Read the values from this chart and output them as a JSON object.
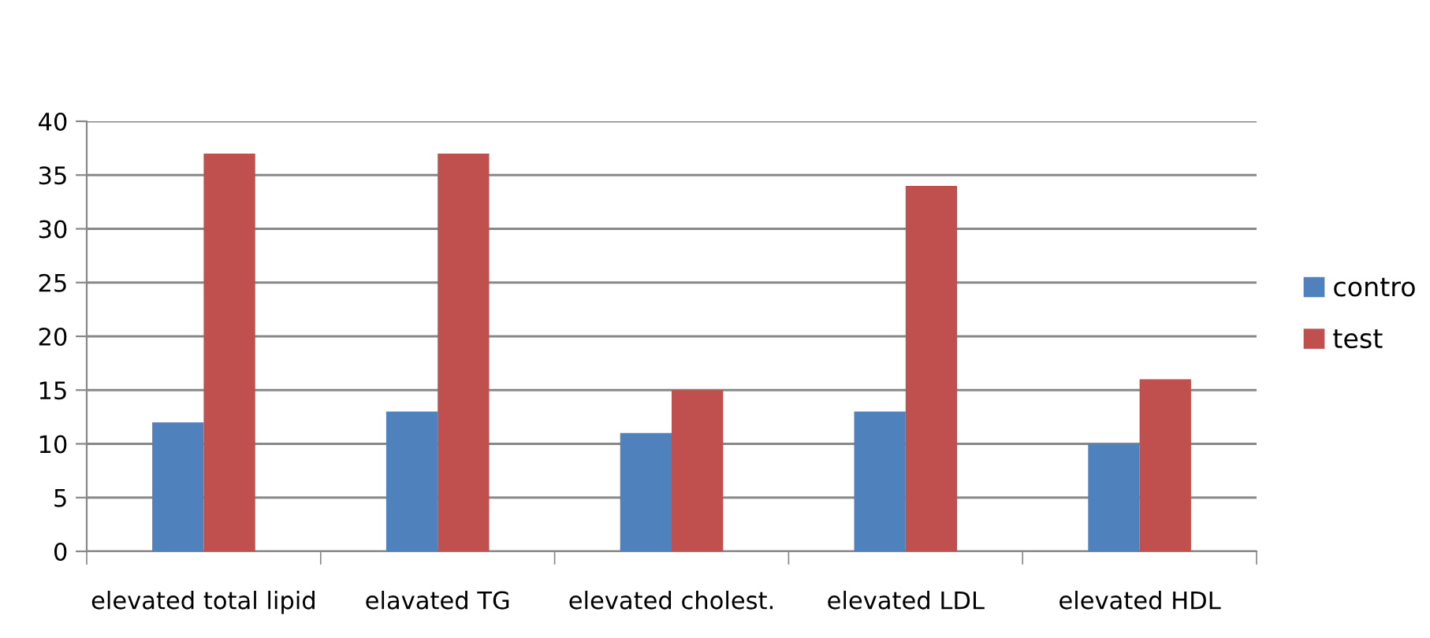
{
  "chart_data": {
    "type": "bar",
    "categories": [
      "elevated total lipid",
      "elavated TG",
      "elevated cholest.",
      "elevated LDL",
      "elevated HDL"
    ],
    "series": [
      {
        "name": "contro",
        "color": "#4f81bd",
        "values": [
          12,
          13,
          11,
          13,
          10
        ]
      },
      {
        "name": "test",
        "color": "#c0504d",
        "values": [
          37,
          37,
          15,
          34,
          16
        ]
      }
    ],
    "ylim": [
      0,
      40
    ],
    "yticks": [
      0,
      5,
      10,
      15,
      20,
      25,
      30,
      35,
      40
    ],
    "grid": "y",
    "legend": "right"
  }
}
